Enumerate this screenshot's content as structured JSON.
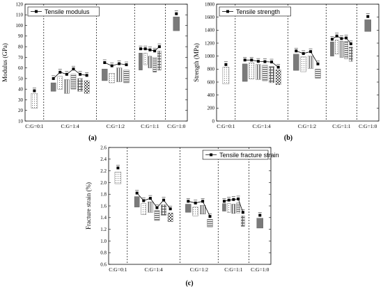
{
  "chart_data": [
    {
      "type": "scatter",
      "panel_label": "(a)",
      "ylabel": "Modulus (GPa)",
      "xlabel": "",
      "ylim": [
        10,
        120
      ],
      "yticks": [
        10,
        20,
        30,
        40,
        50,
        60,
        70,
        80,
        90,
        100,
        110,
        120
      ],
      "legend": "Tensile modulus",
      "legend_position": "top-left",
      "groups": [
        "C:G=0:1",
        "C:G=1:4",
        "C:G=1:2",
        "C:G=1:1",
        "C:G=1:0"
      ],
      "series": [
        {
          "group": "C:G=0:1",
          "values": [
            38.5
          ]
        },
        {
          "group": "C:G=1:4",
          "values": [
            50,
            56,
            54,
            59,
            54,
            53
          ]
        },
        {
          "group": "C:G=1:2",
          "values": [
            65,
            62,
            64,
            63
          ]
        },
        {
          "group": "C:G=1:1",
          "values": [
            78,
            78,
            77,
            76,
            80
          ]
        },
        {
          "group": "C:G=1:0",
          "values": [
            111
          ]
        }
      ],
      "bars": [
        {
          "group": "C:G=0:1",
          "values": [
            [
              22,
              36
            ]
          ]
        },
        {
          "group": "C:G=1:4",
          "values": [
            [
              38,
              46
            ],
            [
              40,
              52
            ],
            [
              36,
              49
            ],
            [
              40,
              54
            ],
            [
              38,
              50
            ],
            [
              36,
              48
            ]
          ]
        },
        {
          "group": "C:G=1:2",
          "values": [
            [
              48,
              59
            ],
            [
              46,
              55
            ],
            [
              47,
              60
            ],
            [
              46,
              58
            ]
          ]
        },
        {
          "group": "C:G=1:1",
          "values": [
            [
              58,
              74
            ],
            [
              63,
              74
            ],
            [
              60,
              71
            ],
            [
              56,
              70
            ],
            [
              58,
              76
            ]
          ]
        },
        {
          "group": "C:G=1:0",
          "values": [
            [
              95,
              108
            ]
          ]
        }
      ]
    },
    {
      "type": "scatter",
      "panel_label": "(b)",
      "ylabel": "Strength (MPa)",
      "xlabel": "",
      "ylim": [
        0,
        1800
      ],
      "yticks": [
        0,
        200,
        400,
        600,
        800,
        1000,
        1200,
        1400,
        1600,
        1800
      ],
      "legend": "Tensile strength",
      "legend_position": "top-left",
      "groups": [
        "C:G=0:1",
        "C:G=1:4",
        "C:G=1:2",
        "C:G=1:1",
        "C:G=1:0"
      ],
      "series": [
        {
          "group": "C:G=0:1",
          "values": [
            870
          ]
        },
        {
          "group": "C:G=1:4",
          "values": [
            940,
            940,
            920,
            915,
            910,
            830
          ]
        },
        {
          "group": "C:G=1:2",
          "values": [
            1080,
            1040,
            1070,
            880
          ]
        },
        {
          "group": "C:G=1:1",
          "values": [
            1260,
            1310,
            1270,
            1280,
            1190
          ]
        },
        {
          "group": "C:G=1:0",
          "values": [
            1610
          ]
        }
      ],
      "bars": [
        {
          "group": "C:G=0:1",
          "values": [
            [
              570,
              830
            ]
          ]
        },
        {
          "group": "C:G=1:4",
          "values": [
            [
              610,
              880
            ],
            [
              650,
              900
            ],
            [
              640,
              870
            ],
            [
              620,
              860
            ],
            [
              590,
              840
            ],
            [
              560,
              790
            ]
          ]
        },
        {
          "group": "C:G=1:2",
          "values": [
            [
              780,
              1030
            ],
            [
              760,
              990
            ],
            [
              810,
              1000
            ],
            [
              660,
              800
            ]
          ]
        },
        {
          "group": "C:G=1:1",
          "values": [
            [
              1000,
              1220
            ],
            [
              1030,
              1250
            ],
            [
              980,
              1230
            ],
            [
              960,
              1230
            ],
            [
              920,
              1140
            ]
          ]
        },
        {
          "group": "C:G=1:0",
          "values": [
            [
              1380,
              1560
            ]
          ]
        }
      ]
    },
    {
      "type": "scatter",
      "panel_label": "(c)",
      "ylabel": "Fracture strain (%)",
      "xlabel": "",
      "ylim": [
        0.6,
        2.6
      ],
      "yticks": [
        0.6,
        0.8,
        1.0,
        1.2,
        1.4,
        1.6,
        1.8,
        2.0,
        2.2,
        2.4,
        2.6
      ],
      "legend": "Tensile fracture strain",
      "legend_position": "top-right",
      "groups": [
        "C:G=0:1",
        "C:G=1:4",
        "C:G=1:2",
        "C:G=1:1",
        "C:G=1:0"
      ],
      "series": [
        {
          "group": "C:G=0:1",
          "values": [
            2.25
          ]
        },
        {
          "group": "C:G=1:4",
          "values": [
            1.82,
            1.69,
            1.73,
            1.57,
            1.7,
            1.55
          ]
        },
        {
          "group": "C:G=1:2",
          "values": [
            1.68,
            1.65,
            1.68,
            1.42
          ]
        },
        {
          "group": "C:G=1:1",
          "values": [
            1.68,
            1.7,
            1.71,
            1.72,
            1.49
          ]
        },
        {
          "group": "C:G=1:0",
          "values": [
            1.44
          ]
        }
      ],
      "bars": [
        {
          "group": "C:G=0:1",
          "values": [
            [
              1.98,
              2.18
            ]
          ]
        },
        {
          "group": "C:G=1:4",
          "values": [
            [
              1.58,
              1.76
            ],
            [
              1.45,
              1.64
            ],
            [
              1.49,
              1.67
            ],
            [
              1.35,
              1.52
            ],
            [
              1.44,
              1.62
            ],
            [
              1.33,
              1.48
            ]
          ]
        },
        {
          "group": "C:G=1:2",
          "values": [
            [
              1.49,
              1.63
            ],
            [
              1.43,
              1.58
            ],
            [
              1.46,
              1.61
            ],
            [
              1.24,
              1.37
            ]
          ]
        },
        {
          "group": "C:G=1:1",
          "values": [
            [
              1.51,
              1.64
            ],
            [
              1.49,
              1.64
            ],
            [
              1.47,
              1.63
            ],
            [
              1.48,
              1.65
            ],
            [
              1.25,
              1.43
            ]
          ]
        },
        {
          "group": "C:G=1:0",
          "values": [
            [
              1.22,
              1.39
            ]
          ]
        }
      ]
    }
  ]
}
